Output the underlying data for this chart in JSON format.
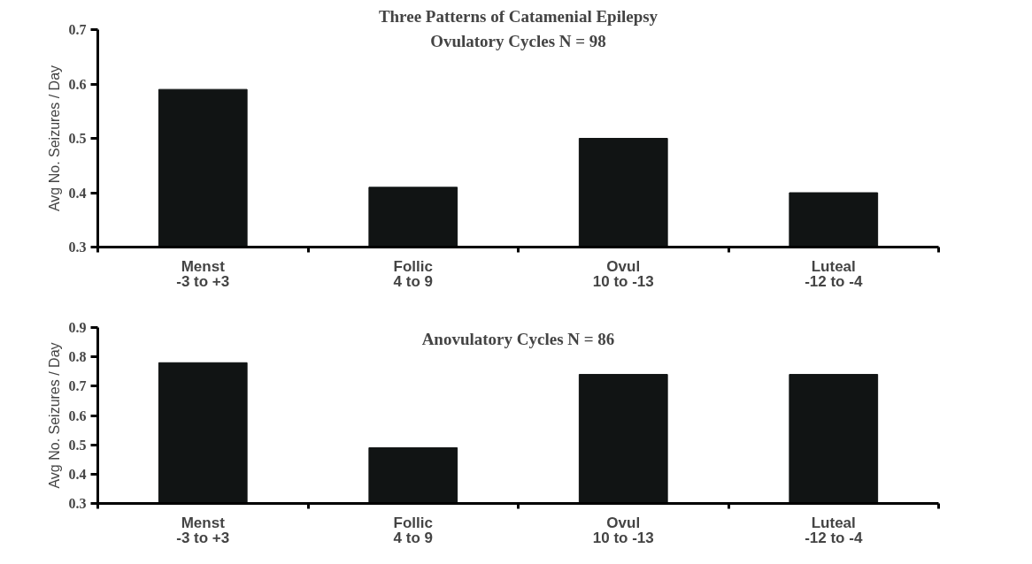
{
  "chart_data": [
    {
      "type": "bar",
      "title": "Three Patterns of Catamenial Epilepsy",
      "subtitle": "Ovulatory Cycles N = 98",
      "ylabel": "Avg No. Seizures / Day",
      "categories": [
        "Menst\n-3 to +3",
        "Follic\n4 to 9",
        "Ovul\n10 to -13",
        "Luteal\n-12 to -4"
      ],
      "values": [
        0.59,
        0.41,
        0.5,
        0.4
      ],
      "color": "#111414",
      "ylim": [
        0.3,
        0.7
      ],
      "yticks": [
        0.3,
        0.4,
        0.5,
        0.6,
        0.7
      ],
      "grid": false
    },
    {
      "type": "bar",
      "title": "Anovulatory Cycles N = 86",
      "ylabel": "Avg No. Seizures / Day",
      "categories": [
        "Menst\n-3 to +3",
        "Follic\n4 to 9",
        "Ovul\n10 to -13",
        "Luteal\n-12 to -4"
      ],
      "values": [
        0.78,
        0.49,
        0.74,
        0.74
      ],
      "color": "#111414",
      "ylim": [
        0.3,
        0.9
      ],
      "yticks": [
        0.3,
        0.4,
        0.5,
        0.6,
        0.7,
        0.8,
        0.9
      ],
      "grid": false
    }
  ]
}
